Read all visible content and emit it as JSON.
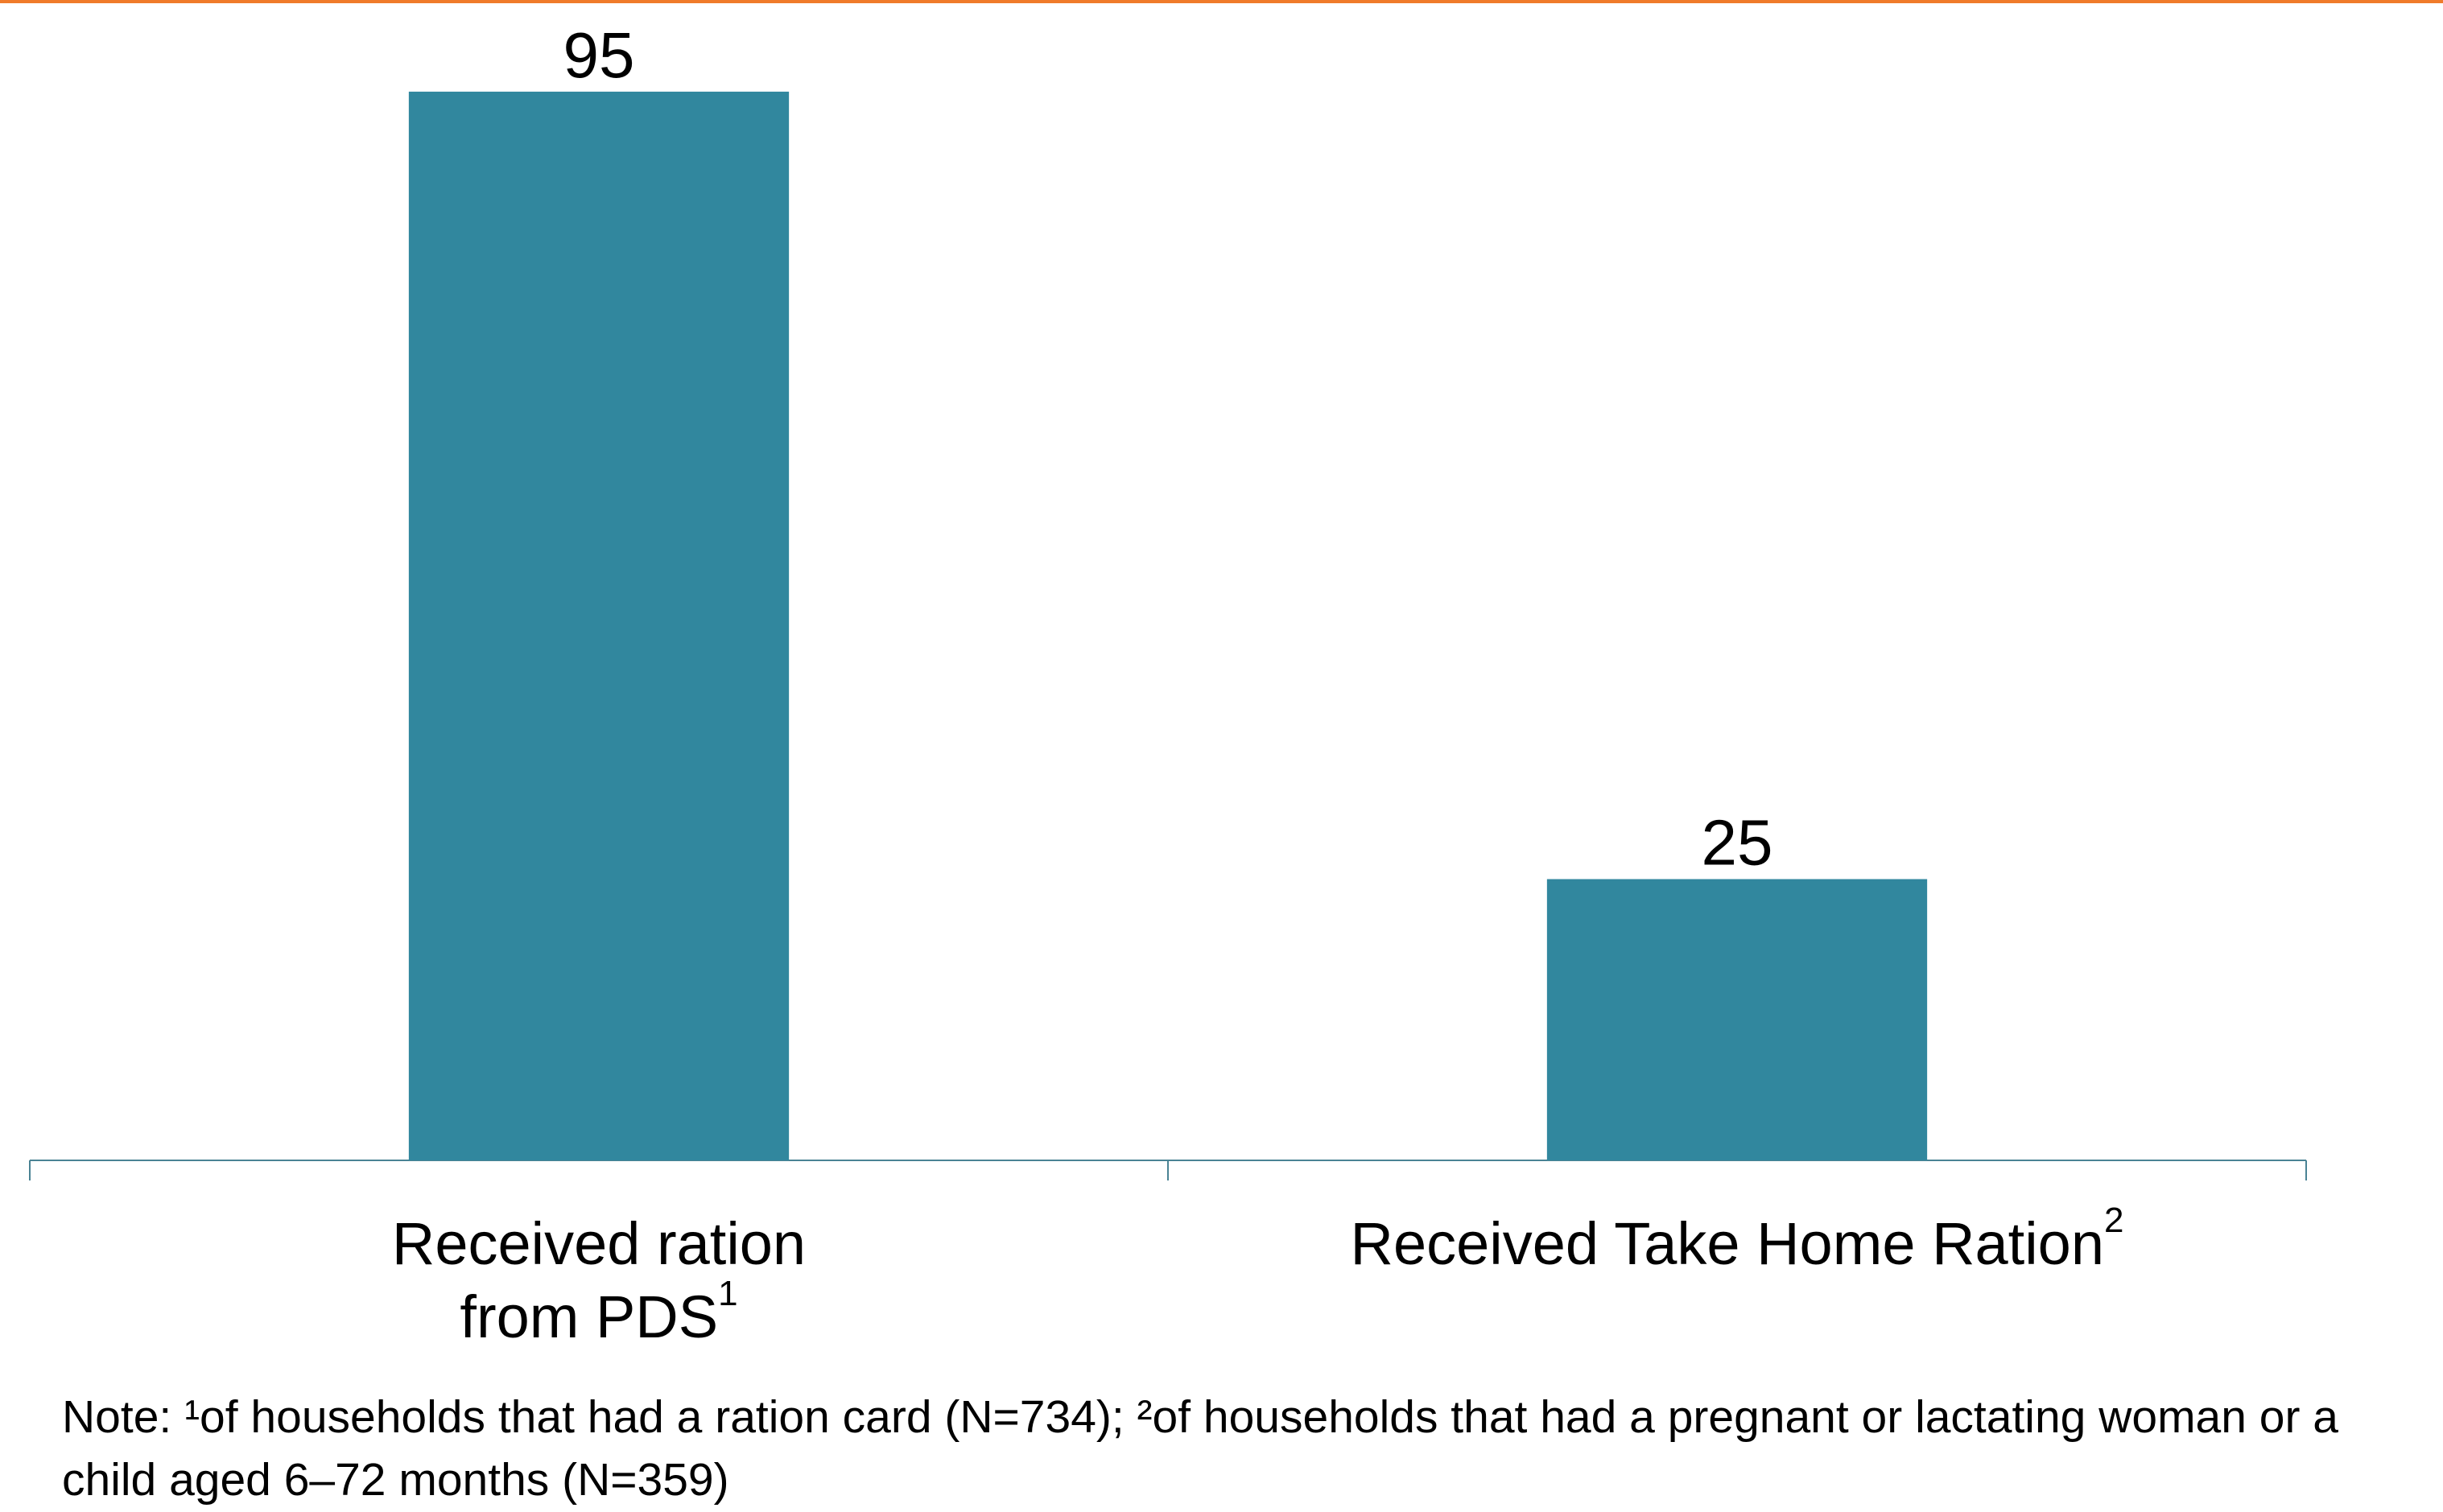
{
  "chart_data": {
    "type": "bar",
    "categories": [
      "Received ration from PDS",
      "Received Take Home Ration"
    ],
    "category_notes": [
      "1",
      "2"
    ],
    "values": [
      95,
      25
    ],
    "color": "#31879e",
    "ylim": [
      0,
      100
    ],
    "note": "Note: ¹of households that had a ration card (N=734); ²of households that had a pregnant or lactating woman or a child aged 6–72 months (N=359)"
  }
}
